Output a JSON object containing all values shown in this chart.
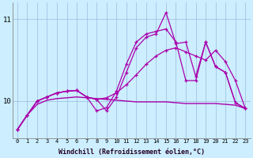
{
  "xlabel": "Windchill (Refroidissement éolien,°C)",
  "ylabel": "",
  "bg_color": "#cceeff",
  "grid_color": "#99bbdd",
  "line_color": "#aa00aa",
  "x": [
    0,
    1,
    2,
    3,
    4,
    5,
    6,
    7,
    8,
    9,
    10,
    11,
    12,
    13,
    14,
    15,
    16,
    17,
    18,
    19,
    20,
    21,
    22,
    23
  ],
  "smooth_line": [
    9.65,
    9.83,
    9.96,
    10.01,
    10.03,
    10.04,
    10.05,
    10.04,
    10.03,
    10.02,
    10.01,
    10.0,
    9.99,
    9.99,
    9.99,
    9.99,
    9.98,
    9.97,
    9.97,
    9.97,
    9.97,
    9.96,
    9.95,
    9.91
  ],
  "line2": [
    9.65,
    9.83,
    10.0,
    10.05,
    10.1,
    10.12,
    10.13,
    10.05,
    10.02,
    10.04,
    10.1,
    10.2,
    10.32,
    10.45,
    10.55,
    10.62,
    10.65,
    10.6,
    10.55,
    10.5,
    10.62,
    10.48,
    10.25,
    9.91
  ],
  "line3": [
    9.65,
    9.83,
    10.0,
    10.05,
    10.1,
    10.12,
    10.13,
    10.05,
    10.02,
    9.88,
    10.05,
    10.35,
    10.65,
    10.78,
    10.82,
    11.08,
    10.7,
    10.72,
    10.3,
    10.72,
    10.42,
    10.35,
    9.98,
    9.91
  ],
  "line4": [
    9.65,
    9.83,
    10.0,
    10.05,
    10.1,
    10.12,
    10.13,
    10.05,
    9.88,
    9.92,
    10.12,
    10.45,
    10.72,
    10.82,
    10.85,
    10.88,
    10.72,
    10.25,
    10.25,
    10.72,
    10.42,
    10.35,
    9.98,
    9.91
  ],
  "ylim": [
    9.55,
    11.2
  ],
  "yticks": [
    10,
    11
  ],
  "xticks": [
    0,
    1,
    2,
    3,
    4,
    5,
    6,
    7,
    8,
    9,
    10,
    11,
    12,
    13,
    14,
    15,
    16,
    17,
    18,
    19,
    20,
    21,
    22,
    23
  ]
}
